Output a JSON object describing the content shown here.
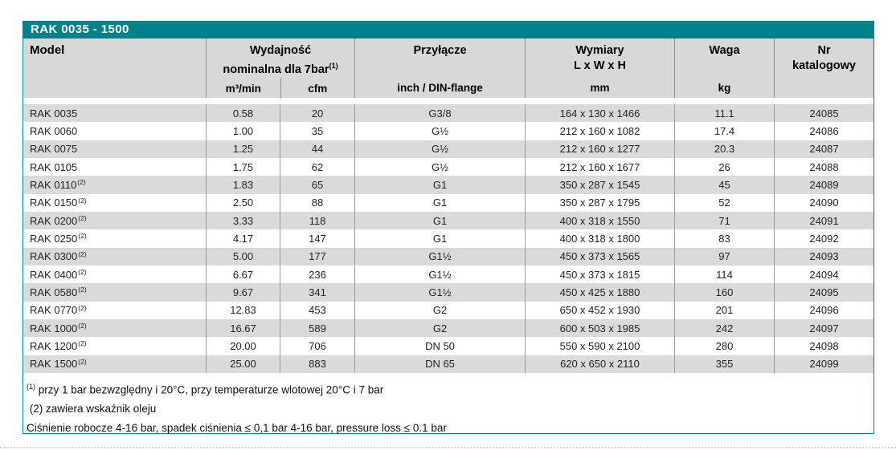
{
  "title_bar": {
    "label": "RAK 0035 - 1500"
  },
  "table": {
    "columns": {
      "model": "Model",
      "capacity_line1": "Wydajność",
      "capacity_line2": "nominalna dla 7bar",
      "capacity_sup": "(1)",
      "unit_m3min": "m³/min",
      "unit_cfm": "cfm",
      "connection_title": "Przyłącze",
      "connection_unit": "inch / DIN-flange",
      "dimensions_line1": "Wymiary",
      "dimensions_line2": "L x W x H",
      "dimensions_unit": "mm",
      "weight_title": "Waga",
      "weight_unit": "kg",
      "catalog_line1": "Nr",
      "catalog_line2": "katalogowy"
    },
    "rows": [
      {
        "model": "RAK 0035",
        "sup": "",
        "m3min": "0.58",
        "cfm": "20",
        "conn": "G3/8",
        "dims": "164 x 130 x 1466",
        "kg": "11.1",
        "nr": "24085"
      },
      {
        "model": "RAK 0060",
        "sup": "",
        "m3min": "1.00",
        "cfm": "35",
        "conn": "G½",
        "dims": "212 x 160 x 1082",
        "kg": "17.4",
        "nr": "24086"
      },
      {
        "model": "RAK 0075",
        "sup": "",
        "m3min": "1.25",
        "cfm": "44",
        "conn": "G½",
        "dims": "212 x 160 x 1277",
        "kg": "20.3",
        "nr": "24087"
      },
      {
        "model": "RAK 0105",
        "sup": "",
        "m3min": "1.75",
        "cfm": "62",
        "conn": "G½",
        "dims": "212 x 160 x 1677",
        "kg": "26",
        "nr": "24088"
      },
      {
        "model": "RAK 0110",
        "sup": "(2)",
        "m3min": "1.83",
        "cfm": "65",
        "conn": "G1",
        "dims": "350 x 287 x 1545",
        "kg": "45",
        "nr": "24089"
      },
      {
        "model": "RAK 0150",
        "sup": "(2)",
        "m3min": "2.50",
        "cfm": "88",
        "conn": "G1",
        "dims": "350 x 287 x 1795",
        "kg": "52",
        "nr": "24090"
      },
      {
        "model": "RAK 0200",
        "sup": "(2)",
        "m3min": "3.33",
        "cfm": "118",
        "conn": "G1",
        "dims": "400 x 318 x 1550",
        "kg": "71",
        "nr": "24091"
      },
      {
        "model": "RAK 0250",
        "sup": "(2)",
        "m3min": "4.17",
        "cfm": "147",
        "conn": "G1",
        "dims": "400 x 318 x 1800",
        "kg": "83",
        "nr": "24092"
      },
      {
        "model": "RAK 0300",
        "sup": "(2)",
        "m3min": "5.00",
        "cfm": "177",
        "conn": "G1½",
        "dims": "450 x 373 x 1565",
        "kg": "97",
        "nr": "24093"
      },
      {
        "model": "RAK 0400",
        "sup": "(2)",
        "m3min": "6.67",
        "cfm": "236",
        "conn": "G1½",
        "dims": "450 x 373 x 1815",
        "kg": "114",
        "nr": "24094"
      },
      {
        "model": "RAK 0580",
        "sup": "(2)",
        "m3min": "9.67",
        "cfm": "341",
        "conn": "G1½",
        "dims": "450 x 425 x 1880",
        "kg": "160",
        "nr": "24095"
      },
      {
        "model": "RAK 0770",
        "sup": "(2)",
        "m3min": "12.83",
        "cfm": "453",
        "conn": "G2",
        "dims": "650 x 452 x 1930",
        "kg": "201",
        "nr": "24096"
      },
      {
        "model": "RAK 1000",
        "sup": "(2)",
        "m3min": "16.67",
        "cfm": "589",
        "conn": "G2",
        "dims": "600 x 503 x 1985",
        "kg": "242",
        "nr": "24097"
      },
      {
        "model": "RAK 1200",
        "sup": "(2)",
        "m3min": "20.00",
        "cfm": "706",
        "conn": "DN 50",
        "dims": "550 x 590 x 2100",
        "kg": "280",
        "nr": "24098"
      },
      {
        "model": "RAK 1500",
        "sup": "(2)",
        "m3min": "25.00",
        "cfm": "883",
        "conn": "DN 65",
        "dims": "620 x 650 x 2110",
        "kg": "355",
        "nr": "24099"
      }
    ]
  },
  "footnotes": {
    "note1_sup": "(1)",
    "note1_text": " przy 1 bar bezwzględny i 20°C, przy temperaturze wlotowej 20°C i 7 bar",
    "note2_text": " (2) zawiera wskaźnik oleju",
    "note3_text": "Ciśnienie robocze 4-16 bar, spadek ciśnienia ≤ 0,1 bar 4-16 bar, pressure loss ≤ 0.1 bar"
  },
  "colors": {
    "accent_teal": "#00818b",
    "header_gray": "#d8d8d8",
    "row_gray": "#dadada",
    "divider_gray": "#9c9c9c"
  }
}
